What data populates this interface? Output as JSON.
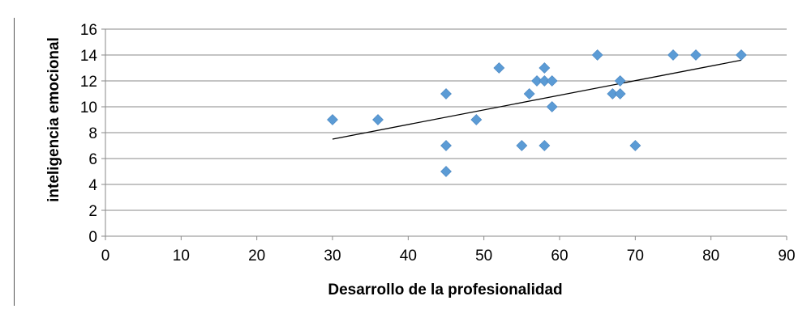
{
  "chart_data": {
    "type": "scatter",
    "title": "",
    "xlabel": "Desarrollo de la profesionalidad",
    "ylabel": "inteligencia emocional",
    "xlim": [
      0,
      90
    ],
    "ylim": [
      0,
      16
    ],
    "xticks": [
      0,
      10,
      20,
      30,
      40,
      50,
      60,
      70,
      80,
      90
    ],
    "yticks": [
      0,
      2,
      4,
      6,
      8,
      10,
      12,
      14,
      16
    ],
    "grid": "horizontal",
    "legend": "none",
    "marker_color": "#5B9BD5",
    "trendline": {
      "type": "linear",
      "color": "#000000",
      "from": [
        30,
        7.5
      ],
      "to": [
        84,
        13.6
      ]
    },
    "points": [
      {
        "x": 30,
        "y": 9
      },
      {
        "x": 36,
        "y": 9
      },
      {
        "x": 45,
        "y": 11
      },
      {
        "x": 45,
        "y": 7
      },
      {
        "x": 45,
        "y": 5
      },
      {
        "x": 49,
        "y": 9
      },
      {
        "x": 52,
        "y": 13
      },
      {
        "x": 55,
        "y": 7
      },
      {
        "x": 56,
        "y": 11
      },
      {
        "x": 57,
        "y": 12
      },
      {
        "x": 58,
        "y": 13
      },
      {
        "x": 58,
        "y": 12
      },
      {
        "x": 58,
        "y": 7
      },
      {
        "x": 59,
        "y": 12
      },
      {
        "x": 59,
        "y": 10
      },
      {
        "x": 65,
        "y": 14
      },
      {
        "x": 67,
        "y": 11
      },
      {
        "x": 68,
        "y": 12
      },
      {
        "x": 68,
        "y": 11
      },
      {
        "x": 70,
        "y": 7
      },
      {
        "x": 75,
        "y": 14
      },
      {
        "x": 78,
        "y": 14
      },
      {
        "x": 84,
        "y": 14
      }
    ]
  }
}
